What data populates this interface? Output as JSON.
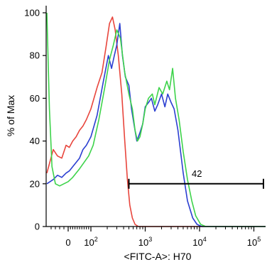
{
  "chart_data": {
    "type": "line",
    "title": "",
    "xlabel": "<FITC-A>: H70",
    "ylabel": "% of Max",
    "x_scale": "biexponential",
    "xlim": [
      -50,
      200000
    ],
    "ylim": [
      0,
      105
    ],
    "y_ticks": [
      {
        "value": 0,
        "label": "0"
      },
      {
        "value": 20,
        "label": "20"
      },
      {
        "value": 40,
        "label": "40"
      },
      {
        "value": 60,
        "label": "60"
      },
      {
        "value": 80,
        "label": "80"
      },
      {
        "value": 100,
        "label": "100"
      }
    ],
    "x_ticks": [
      {
        "value": 0,
        "label": "0",
        "sup": ""
      },
      {
        "value": 100,
        "label": "10",
        "sup": "2"
      },
      {
        "value": 1000,
        "label": "10",
        "sup": "3"
      },
      {
        "value": 10000,
        "label": "10",
        "sup": "4"
      },
      {
        "value": 100000,
        "label": "10",
        "sup": "5"
      }
    ],
    "grid": false,
    "legend": "none",
    "series": [
      {
        "color": "#e8453c",
        "points": [
          [
            -50,
            25
          ],
          [
            -35,
            36
          ],
          [
            -25,
            33
          ],
          [
            -15,
            32
          ],
          [
            -5,
            38
          ],
          [
            5,
            37
          ],
          [
            20,
            40
          ],
          [
            35,
            42
          ],
          [
            50,
            45
          ],
          [
            65,
            47
          ],
          [
            80,
            50
          ],
          [
            100,
            55
          ],
          [
            130,
            65
          ],
          [
            160,
            72
          ],
          [
            190,
            84
          ],
          [
            220,
            95
          ],
          [
            250,
            98
          ],
          [
            280,
            92
          ],
          [
            320,
            80
          ],
          [
            370,
            62
          ],
          [
            420,
            40
          ],
          [
            470,
            22
          ],
          [
            520,
            10
          ],
          [
            580,
            4
          ],
          [
            650,
            1
          ],
          [
            750,
            0
          ],
          [
            1000,
            0
          ],
          [
            200000,
            0
          ]
        ]
      },
      {
        "color": "#2b3fd1",
        "points": [
          [
            -50,
            20
          ],
          [
            -35,
            22
          ],
          [
            -25,
            24
          ],
          [
            -15,
            23
          ],
          [
            -5,
            25
          ],
          [
            5,
            26
          ],
          [
            20,
            28
          ],
          [
            35,
            30
          ],
          [
            50,
            32
          ],
          [
            65,
            36
          ],
          [
            80,
            38
          ],
          [
            100,
            42
          ],
          [
            130,
            52
          ],
          [
            170,
            68
          ],
          [
            210,
            80
          ],
          [
            240,
            74
          ],
          [
            270,
            80
          ],
          [
            300,
            85
          ],
          [
            340,
            95
          ],
          [
            380,
            80
          ],
          [
            430,
            70
          ],
          [
            500,
            66
          ],
          [
            560,
            55
          ],
          [
            620,
            48
          ],
          [
            700,
            40
          ],
          [
            800,
            44
          ],
          [
            900,
            48
          ],
          [
            1000,
            56
          ],
          [
            1150,
            58
          ],
          [
            1300,
            60
          ],
          [
            1500,
            54
          ],
          [
            1700,
            57
          ],
          [
            2000,
            62
          ],
          [
            2300,
            56
          ],
          [
            2600,
            62
          ],
          [
            3000,
            58
          ],
          [
            3400,
            55
          ],
          [
            4000,
            45
          ],
          [
            5000,
            25
          ],
          [
            6000,
            12
          ],
          [
            7500,
            4
          ],
          [
            9000,
            1
          ],
          [
            11000,
            0
          ],
          [
            200000,
            0
          ]
        ]
      },
      {
        "color": "#3dd34a",
        "points": [
          [
            -50,
            100
          ],
          [
            -44,
            55
          ],
          [
            -38,
            28
          ],
          [
            -30,
            20
          ],
          [
            -20,
            19
          ],
          [
            -10,
            20
          ],
          [
            0,
            21
          ],
          [
            10,
            22
          ],
          [
            20,
            23
          ],
          [
            35,
            25
          ],
          [
            50,
            27
          ],
          [
            70,
            30
          ],
          [
            90,
            33
          ],
          [
            110,
            38
          ],
          [
            140,
            50
          ],
          [
            180,
            65
          ],
          [
            220,
            78
          ],
          [
            260,
            85
          ],
          [
            300,
            92
          ],
          [
            350,
            88
          ],
          [
            420,
            72
          ],
          [
            500,
            62
          ],
          [
            580,
            55
          ],
          [
            650,
            45
          ],
          [
            720,
            40
          ],
          [
            800,
            42
          ],
          [
            900,
            48
          ],
          [
            1000,
            55
          ],
          [
            1150,
            60
          ],
          [
            1350,
            62
          ],
          [
            1500,
            57
          ],
          [
            1800,
            65
          ],
          [
            2100,
            62
          ],
          [
            2500,
            68
          ],
          [
            2800,
            64
          ],
          [
            3200,
            74
          ],
          [
            3600,
            60
          ],
          [
            4200,
            50
          ],
          [
            5000,
            35
          ],
          [
            6000,
            22
          ],
          [
            7200,
            12
          ],
          [
            8500,
            5
          ],
          [
            10500,
            1
          ],
          [
            13000,
            0
          ],
          [
            200000,
            0
          ]
        ]
      }
    ],
    "gate": {
      "x_start": 500,
      "x_end": 200000,
      "y": 20,
      "label": "42"
    }
  }
}
